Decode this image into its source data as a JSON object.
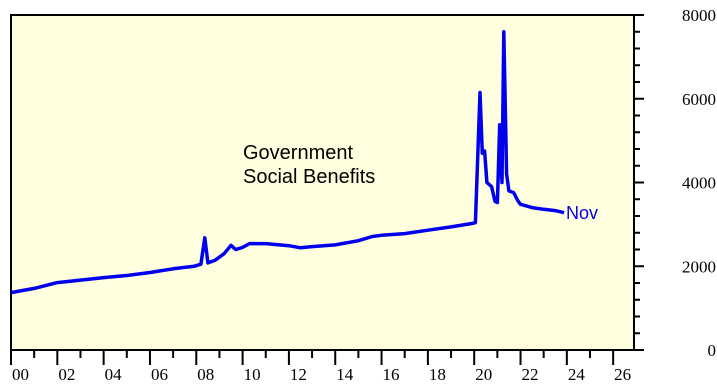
{
  "colors": {
    "plot_bg": "#ffffe0",
    "line": "#0000ee",
    "axis": "#000000"
  },
  "chart_data": {
    "type": "line",
    "title": "",
    "xlabel": "",
    "ylabel": "",
    "annotation_line1": "Government",
    "annotation_line2": "Social Benefits",
    "end_label": "Nov",
    "xlim": [
      2000,
      2026.9
    ],
    "ylim": [
      0,
      8000
    ],
    "grid": false,
    "y_axis_side": "right",
    "x_ticks": [
      {
        "x": 2000,
        "label": "00"
      },
      {
        "x": 2002,
        "label": "02"
      },
      {
        "x": 2004,
        "label": "04"
      },
      {
        "x": 2006,
        "label": "06"
      },
      {
        "x": 2008,
        "label": "08"
      },
      {
        "x": 2010,
        "label": "10"
      },
      {
        "x": 2012,
        "label": "12"
      },
      {
        "x": 2014,
        "label": "14"
      },
      {
        "x": 2016,
        "label": "16"
      },
      {
        "x": 2018,
        "label": "18"
      },
      {
        "x": 2020,
        "label": "20"
      },
      {
        "x": 2022,
        "label": "22"
      },
      {
        "x": 2024,
        "label": "24"
      },
      {
        "x": 2026,
        "label": "26"
      }
    ],
    "y_ticks": [
      {
        "y": 0,
        "label": "0"
      },
      {
        "y": 2000,
        "label": "2000"
      },
      {
        "y": 4000,
        "label": "4000"
      },
      {
        "y": 6000,
        "label": "6000"
      },
      {
        "y": 8000,
        "label": "8000"
      }
    ],
    "series": [
      {
        "values": [
          [
            2000.0,
            1370
          ],
          [
            2001.0,
            1470
          ],
          [
            2002.0,
            1610
          ],
          [
            2003.0,
            1670
          ],
          [
            2004.0,
            1730
          ],
          [
            2005.0,
            1780
          ],
          [
            2006.0,
            1850
          ],
          [
            2007.0,
            1940
          ],
          [
            2007.9,
            2000
          ],
          [
            2008.2,
            2050
          ],
          [
            2008.37,
            2680
          ],
          [
            2008.5,
            2080
          ],
          [
            2008.8,
            2140
          ],
          [
            2009.2,
            2300
          ],
          [
            2009.5,
            2500
          ],
          [
            2009.7,
            2400
          ],
          [
            2010.0,
            2450
          ],
          [
            2010.3,
            2540
          ],
          [
            2011.0,
            2540
          ],
          [
            2012.0,
            2490
          ],
          [
            2012.5,
            2440
          ],
          [
            2013.0,
            2470
          ],
          [
            2014.0,
            2510
          ],
          [
            2015.0,
            2610
          ],
          [
            2015.6,
            2710
          ],
          [
            2016.0,
            2740
          ],
          [
            2017.0,
            2780
          ],
          [
            2018.0,
            2860
          ],
          [
            2019.0,
            2940
          ],
          [
            2019.9,
            3020
          ],
          [
            2020.05,
            3040
          ],
          [
            2020.25,
            6150
          ],
          [
            2020.35,
            4700
          ],
          [
            2020.45,
            4750
          ],
          [
            2020.55,
            4000
          ],
          [
            2020.75,
            3900
          ],
          [
            2020.9,
            3550
          ],
          [
            2021.0,
            3520
          ],
          [
            2021.1,
            5380
          ],
          [
            2021.2,
            4000
          ],
          [
            2021.28,
            7600
          ],
          [
            2021.4,
            4200
          ],
          [
            2021.5,
            3800
          ],
          [
            2021.7,
            3760
          ],
          [
            2021.9,
            3550
          ],
          [
            2022.0,
            3480
          ],
          [
            2022.5,
            3400
          ],
          [
            2023.0,
            3360
          ],
          [
            2023.5,
            3330
          ],
          [
            2023.88,
            3280
          ]
        ]
      }
    ]
  }
}
